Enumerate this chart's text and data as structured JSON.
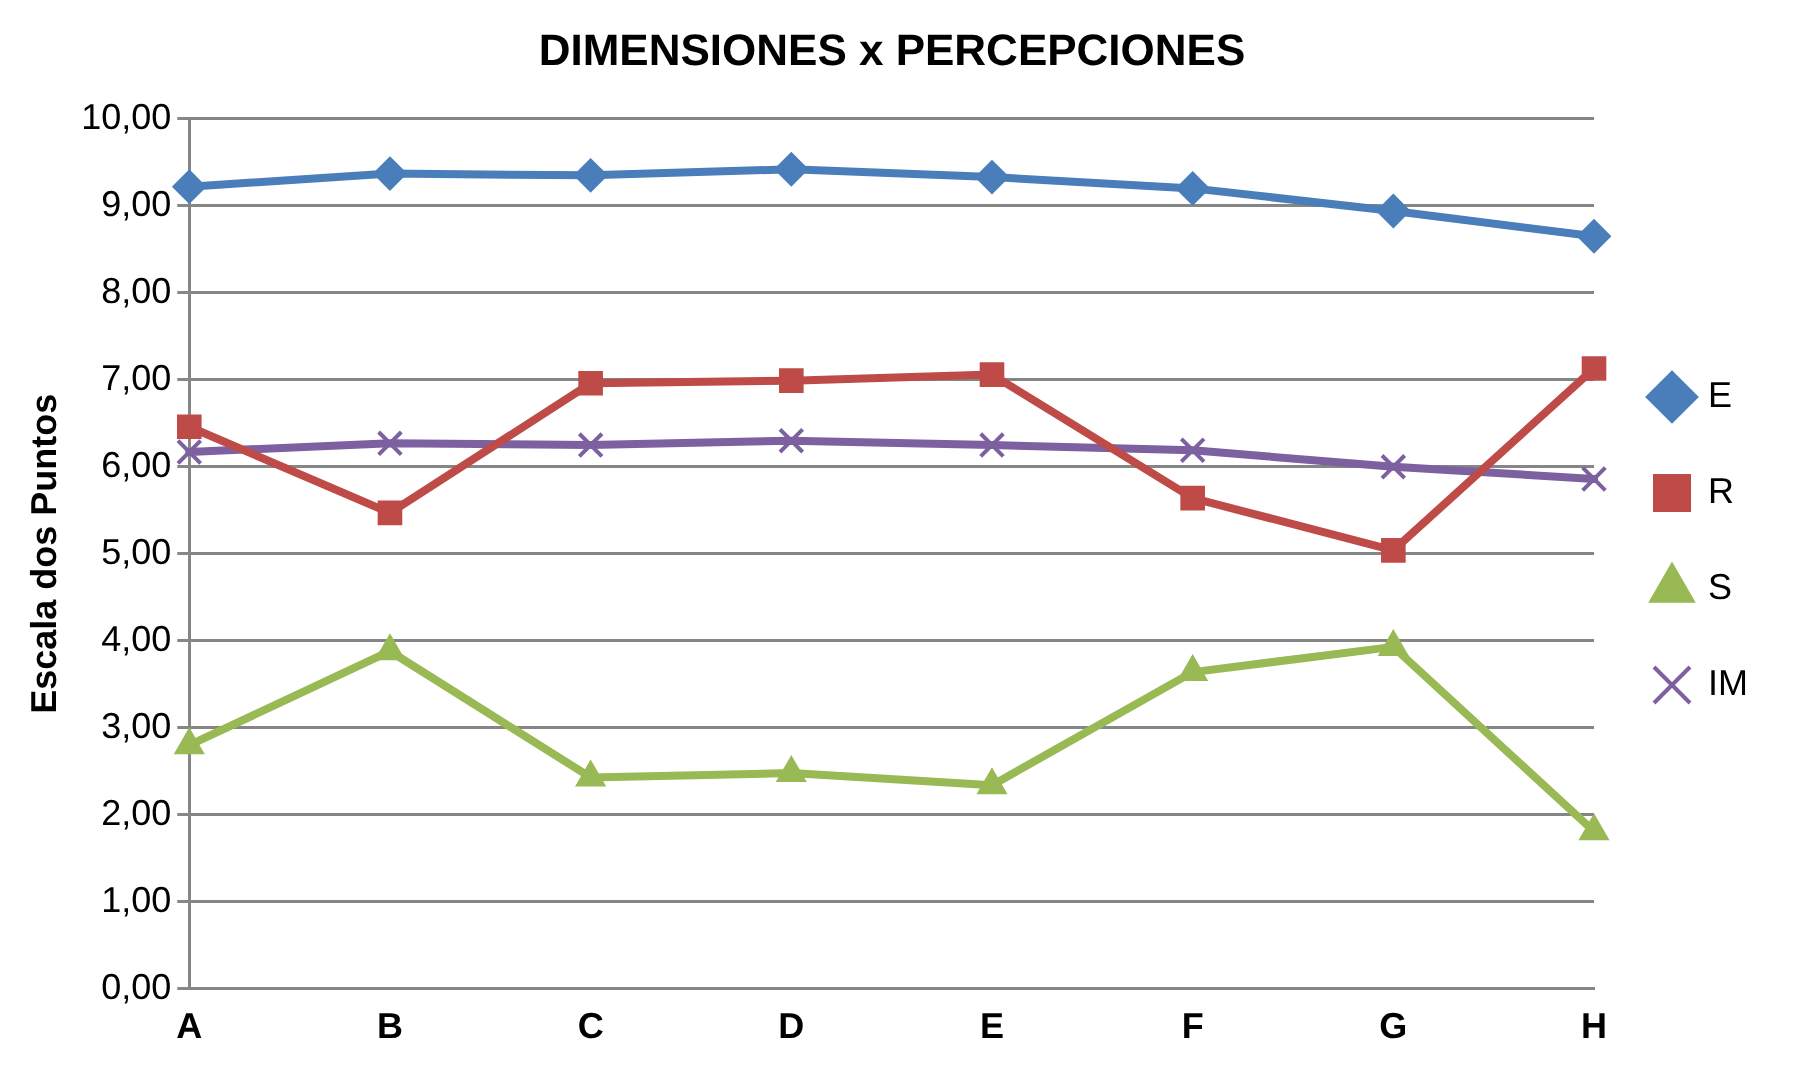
{
  "chart_data": {
    "type": "line",
    "title": "DIMENSIONES x PERCEPCIONES",
    "ylabel": "Escala dos Puntos",
    "categories": [
      "A",
      "B",
      "C",
      "D",
      "E",
      "F",
      "G",
      "H"
    ],
    "series": [
      {
        "name": "E",
        "color": "#4a7ebb",
        "marker": "diamond",
        "values": [
          9.22,
          9.37,
          9.35,
          9.42,
          9.33,
          9.2,
          8.94,
          8.65
        ]
      },
      {
        "name": "R",
        "color": "#be4b48",
        "marker": "square",
        "values": [
          6.46,
          5.47,
          6.96,
          6.99,
          7.06,
          5.64,
          5.04,
          7.13
        ]
      },
      {
        "name": "S",
        "color": "#98b954",
        "marker": "triangle",
        "values": [
          2.8,
          3.88,
          2.43,
          2.48,
          2.34,
          3.64,
          3.93,
          1.81
        ]
      },
      {
        "name": "IM",
        "color": "#7d60a0",
        "marker": "cross",
        "values": [
          6.17,
          6.27,
          6.25,
          6.3,
          6.25,
          6.19,
          6.0,
          5.86
        ]
      }
    ],
    "ylim": [
      0,
      10
    ],
    "yticks": [
      {
        "value": 0,
        "label": "0,00"
      },
      {
        "value": 1,
        "label": "1,00"
      },
      {
        "value": 2,
        "label": "2,00"
      },
      {
        "value": 3,
        "label": "3,00"
      },
      {
        "value": 4,
        "label": "4,00"
      },
      {
        "value": 5,
        "label": "5,00"
      },
      {
        "value": 6,
        "label": "6,00"
      },
      {
        "value": 7,
        "label": "7,00"
      },
      {
        "value": 8,
        "label": "8,00"
      },
      {
        "value": 9,
        "label": "9,00"
      },
      {
        "value": 10,
        "label": "10,00"
      }
    ],
    "grid": "y",
    "legend": "right",
    "line_style": "solid"
  }
}
